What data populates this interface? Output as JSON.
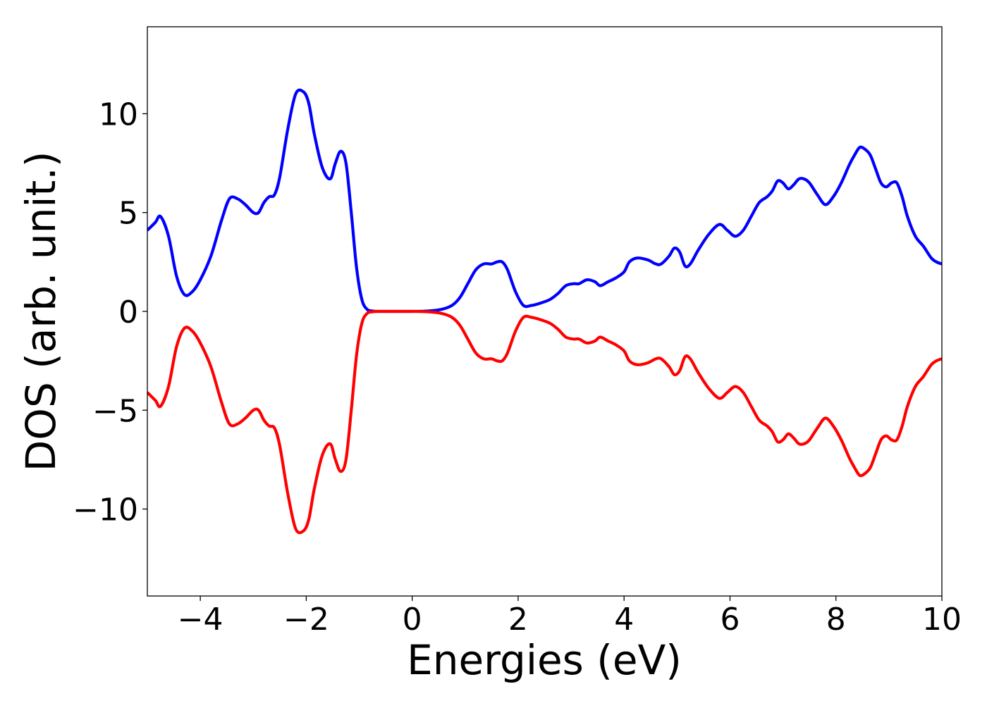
{
  "chart_data": {
    "type": "line",
    "title": "",
    "xlabel": "Energies (eV)",
    "ylabel": "DOS (arb. unit.)",
    "xlim": [
      -5,
      10
    ],
    "ylim": [
      -14.4,
      14.4
    ],
    "grid": false,
    "legend": "none",
    "xticks": [
      -4,
      -2,
      0,
      2,
      4,
      6,
      8,
      10
    ],
    "xtick_labels": [
      "−4",
      "−2",
      "0",
      "2",
      "4",
      "6",
      "8",
      "10"
    ],
    "yticks": [
      -10,
      -5,
      0,
      5,
      10
    ],
    "ytick_labels": [
      "−10",
      "−5",
      "0",
      "5",
      "10"
    ],
    "x": [
      -5.0,
      -4.85,
      -4.75,
      -4.6,
      -4.45,
      -4.3,
      -4.15,
      -4.0,
      -3.8,
      -3.6,
      -3.45,
      -3.3,
      -3.15,
      -3.0,
      -2.9,
      -2.8,
      -2.7,
      -2.6,
      -2.5,
      -2.35,
      -2.2,
      -2.05,
      -1.95,
      -1.85,
      -1.7,
      -1.55,
      -1.45,
      -1.35,
      -1.25,
      -1.15,
      -1.05,
      -0.95,
      -0.85,
      -0.75,
      -0.65,
      -0.5,
      -0.3,
      0.0,
      0.3,
      0.55,
      0.75,
      0.9,
      1.05,
      1.2,
      1.35,
      1.5,
      1.6,
      1.7,
      1.8,
      1.95,
      2.1,
      2.25,
      2.4,
      2.6,
      2.75,
      2.9,
      3.05,
      3.15,
      3.3,
      3.45,
      3.55,
      3.7,
      3.85,
      4.0,
      4.1,
      4.25,
      4.45,
      4.6,
      4.7,
      4.85,
      4.95,
      5.05,
      5.15,
      5.25,
      5.4,
      5.6,
      5.8,
      5.95,
      6.1,
      6.25,
      6.4,
      6.55,
      6.7,
      6.8,
      6.9,
      7.0,
      7.1,
      7.2,
      7.3,
      7.4,
      7.5,
      7.65,
      7.8,
      7.95,
      8.1,
      8.25,
      8.35,
      8.45,
      8.55,
      8.65,
      8.75,
      8.85,
      8.95,
      9.05,
      9.15,
      9.25,
      9.35,
      9.5,
      9.65,
      9.8,
      9.9,
      10.0
    ],
    "series": [
      {
        "color": "#0000ff",
        "values": [
          4.1,
          4.5,
          4.8,
          3.8,
          1.8,
          0.85,
          1.0,
          1.6,
          2.8,
          4.6,
          5.7,
          5.7,
          5.4,
          5.0,
          5.0,
          5.5,
          5.8,
          5.9,
          6.8,
          9.2,
          11.0,
          11.1,
          10.5,
          9.0,
          7.3,
          6.7,
          7.5,
          8.1,
          7.5,
          5.0,
          2.2,
          0.6,
          0.1,
          0.02,
          0.0,
          0.0,
          0.0,
          0.0,
          0.02,
          0.1,
          0.3,
          0.7,
          1.4,
          2.1,
          2.4,
          2.4,
          2.5,
          2.5,
          2.1,
          1.0,
          0.3,
          0.3,
          0.4,
          0.6,
          0.9,
          1.3,
          1.4,
          1.4,
          1.6,
          1.5,
          1.3,
          1.5,
          1.7,
          2.0,
          2.5,
          2.7,
          2.6,
          2.4,
          2.4,
          2.8,
          3.2,
          3.0,
          2.3,
          2.4,
          3.1,
          3.9,
          4.4,
          4.1,
          3.8,
          4.1,
          4.8,
          5.5,
          5.8,
          6.1,
          6.6,
          6.5,
          6.2,
          6.4,
          6.7,
          6.7,
          6.5,
          5.9,
          5.4,
          5.8,
          6.5,
          7.4,
          7.9,
          8.3,
          8.2,
          7.9,
          7.2,
          6.5,
          6.3,
          6.5,
          6.5,
          5.8,
          4.8,
          3.8,
          3.3,
          2.7,
          2.5,
          2.4
        ]
      },
      {
        "color": "#ff0000",
        "values": [
          -4.1,
          -4.5,
          -4.8,
          -3.8,
          -1.8,
          -0.85,
          -1.0,
          -1.6,
          -2.8,
          -4.6,
          -5.7,
          -5.7,
          -5.4,
          -5.0,
          -5.0,
          -5.5,
          -5.8,
          -5.9,
          -6.8,
          -9.2,
          -11.0,
          -11.1,
          -10.5,
          -9.0,
          -7.3,
          -6.7,
          -7.5,
          -8.1,
          -7.5,
          -5.0,
          -2.2,
          -0.6,
          -0.1,
          -0.02,
          0.0,
          0.0,
          0.0,
          0.0,
          -0.02,
          -0.1,
          -0.3,
          -0.7,
          -1.4,
          -2.1,
          -2.4,
          -2.4,
          -2.5,
          -2.5,
          -2.1,
          -1.0,
          -0.3,
          -0.3,
          -0.4,
          -0.6,
          -0.9,
          -1.3,
          -1.4,
          -1.4,
          -1.6,
          -1.5,
          -1.3,
          -1.5,
          -1.7,
          -2.0,
          -2.5,
          -2.7,
          -2.6,
          -2.4,
          -2.4,
          -2.8,
          -3.2,
          -3.0,
          -2.3,
          -2.4,
          -3.1,
          -3.9,
          -4.4,
          -4.1,
          -3.8,
          -4.1,
          -4.8,
          -5.5,
          -5.8,
          -6.1,
          -6.6,
          -6.5,
          -6.2,
          -6.4,
          -6.7,
          -6.7,
          -6.5,
          -5.9,
          -5.4,
          -5.8,
          -6.5,
          -7.4,
          -7.9,
          -8.3,
          -8.2,
          -7.9,
          -7.2,
          -6.5,
          -6.3,
          -6.5,
          -6.5,
          -5.8,
          -4.8,
          -3.8,
          -3.3,
          -2.7,
          -2.5,
          -2.4
        ]
      }
    ]
  }
}
